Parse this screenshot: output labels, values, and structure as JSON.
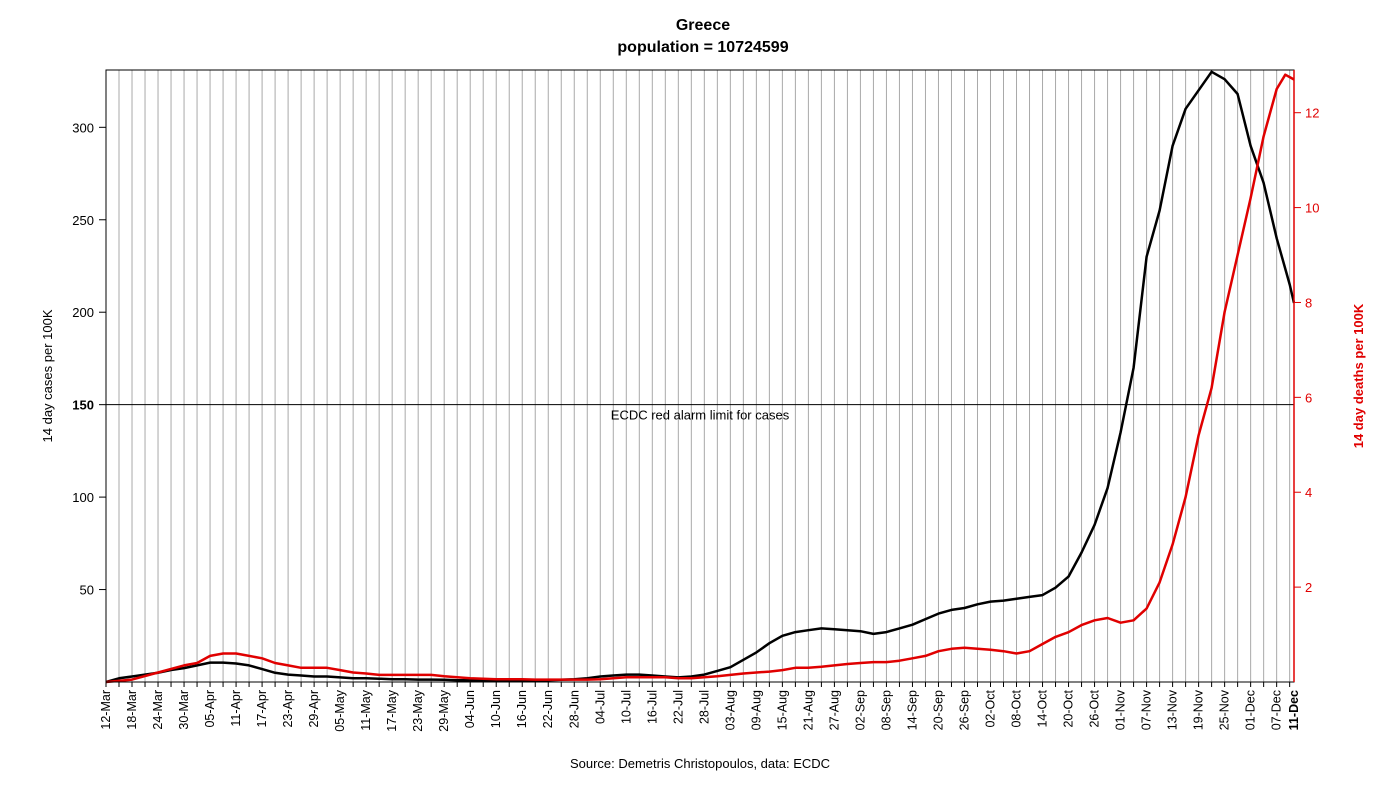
{
  "chart_data": {
    "type": "line",
    "title": "Greece",
    "subtitle": "population = 10724599",
    "ylabel": "14 day cases per 100K",
    "ylabel_right": "14 day deaths per 100K",
    "caption": "Source: Demetris Christopoulos, data: ECDC",
    "threshold": {
      "value": 150,
      "label": "ECDC red alarm limit for cases"
    },
    "ylim": [
      0,
      331
    ],
    "ylim_right": [
      0,
      12.9
    ],
    "yticks": [
      50,
      100,
      150,
      200,
      250,
      300
    ],
    "yticks_right": [
      2,
      4,
      6,
      8,
      10,
      12
    ],
    "x_range_days": [
      0,
      274
    ],
    "xtick_labels": [
      "12-Mar",
      "18-Mar",
      "24-Mar",
      "30-Mar",
      "05-Apr",
      "11-Apr",
      "17-Apr",
      "23-Apr",
      "29-Apr",
      "05-May",
      "11-May",
      "17-May",
      "23-May",
      "29-May",
      "04-Jun",
      "10-Jun",
      "16-Jun",
      "22-Jun",
      "28-Jun",
      "04-Jul",
      "10-Jul",
      "16-Jul",
      "22-Jul",
      "28-Jul",
      "03-Aug",
      "09-Aug",
      "15-Aug",
      "21-Aug",
      "27-Aug",
      "02-Sep",
      "08-Sep",
      "14-Sep",
      "20-Sep",
      "26-Sep",
      "02-Oct",
      "08-Oct",
      "14-Oct",
      "20-Oct",
      "26-Oct",
      "01-Nov",
      "07-Nov",
      "13-Nov",
      "19-Nov",
      "25-Nov",
      "01-Dec",
      "07-Dec"
    ],
    "last_tick_label": "11-Dec",
    "grid": "vertical",
    "series": [
      {
        "name": "14 day cases per 100K",
        "color": "#000000",
        "axis": "left",
        "points": [
          [
            0,
            0
          ],
          [
            3,
            2
          ],
          [
            6,
            3
          ],
          [
            9,
            4
          ],
          [
            12,
            5
          ],
          [
            15,
            6.5
          ],
          [
            18,
            7.5
          ],
          [
            21,
            9
          ],
          [
            24,
            10.5
          ],
          [
            27,
            10.5
          ],
          [
            30,
            10
          ],
          [
            33,
            9
          ],
          [
            36,
            7
          ],
          [
            39,
            5
          ],
          [
            42,
            4
          ],
          [
            45,
            3.5
          ],
          [
            48,
            3
          ],
          [
            51,
            3
          ],
          [
            54,
            2.5
          ],
          [
            57,
            2
          ],
          [
            60,
            2
          ],
          [
            63,
            1.8
          ],
          [
            66,
            1.5
          ],
          [
            69,
            1.5
          ],
          [
            72,
            1.3
          ],
          [
            75,
            1.3
          ],
          [
            78,
            1.2
          ],
          [
            81,
            1
          ],
          [
            84,
            1
          ],
          [
            87,
            1
          ],
          [
            90,
            1
          ],
          [
            93,
            1
          ],
          [
            96,
            1
          ],
          [
            99,
            1
          ],
          [
            102,
            1
          ],
          [
            105,
            1.2
          ],
          [
            108,
            1.5
          ],
          [
            111,
            2
          ],
          [
            114,
            3
          ],
          [
            117,
            3.5
          ],
          [
            120,
            4
          ],
          [
            123,
            4
          ],
          [
            126,
            3.5
          ],
          [
            129,
            3
          ],
          [
            132,
            2.5
          ],
          [
            135,
            3
          ],
          [
            138,
            4
          ],
          [
            141,
            6
          ],
          [
            144,
            8
          ],
          [
            147,
            12
          ],
          [
            150,
            16
          ],
          [
            153,
            21
          ],
          [
            156,
            25
          ],
          [
            159,
            27
          ],
          [
            162,
            28
          ],
          [
            165,
            29
          ],
          [
            168,
            28.5
          ],
          [
            171,
            28
          ],
          [
            174,
            27.5
          ],
          [
            177,
            26
          ],
          [
            180,
            27
          ],
          [
            183,
            29
          ],
          [
            186,
            31
          ],
          [
            189,
            34
          ],
          [
            192,
            37
          ],
          [
            195,
            39
          ],
          [
            198,
            40
          ],
          [
            201,
            42
          ],
          [
            204,
            43.5
          ],
          [
            207,
            44
          ],
          [
            210,
            45
          ],
          [
            213,
            46
          ],
          [
            216,
            47
          ],
          [
            219,
            51
          ],
          [
            222,
            57
          ],
          [
            225,
            70
          ],
          [
            228,
            85
          ],
          [
            231,
            105
          ],
          [
            234,
            135
          ],
          [
            237,
            170
          ],
          [
            240,
            230
          ],
          [
            243,
            255
          ],
          [
            246,
            290
          ],
          [
            249,
            310
          ],
          [
            252,
            320
          ],
          [
            255,
            330
          ],
          [
            258,
            326
          ],
          [
            261,
            318
          ],
          [
            264,
            290
          ],
          [
            267,
            270
          ],
          [
            270,
            240
          ],
          [
            273,
            215
          ],
          [
            274,
            205
          ]
        ]
      },
      {
        "name": "14 day deaths per 100K",
        "color": "#e00000",
        "axis": "right",
        "points": [
          [
            0,
            0
          ],
          [
            6,
            0.05
          ],
          [
            12,
            0.2
          ],
          [
            18,
            0.35
          ],
          [
            21,
            0.4
          ],
          [
            24,
            0.55
          ],
          [
            27,
            0.6
          ],
          [
            30,
            0.6
          ],
          [
            33,
            0.55
          ],
          [
            36,
            0.5
          ],
          [
            39,
            0.4
          ],
          [
            42,
            0.35
          ],
          [
            45,
            0.3
          ],
          [
            48,
            0.3
          ],
          [
            51,
            0.3
          ],
          [
            54,
            0.25
          ],
          [
            57,
            0.2
          ],
          [
            60,
            0.18
          ],
          [
            63,
            0.15
          ],
          [
            66,
            0.15
          ],
          [
            69,
            0.15
          ],
          [
            72,
            0.15
          ],
          [
            75,
            0.15
          ],
          [
            78,
            0.12
          ],
          [
            81,
            0.1
          ],
          [
            84,
            0.08
          ],
          [
            87,
            0.07
          ],
          [
            90,
            0.06
          ],
          [
            93,
            0.06
          ],
          [
            96,
            0.06
          ],
          [
            99,
            0.05
          ],
          [
            102,
            0.05
          ],
          [
            105,
            0.05
          ],
          [
            108,
            0.05
          ],
          [
            111,
            0.05
          ],
          [
            114,
            0.06
          ],
          [
            117,
            0.08
          ],
          [
            120,
            0.1
          ],
          [
            123,
            0.1
          ],
          [
            126,
            0.1
          ],
          [
            129,
            0.1
          ],
          [
            132,
            0.08
          ],
          [
            135,
            0.08
          ],
          [
            138,
            0.1
          ],
          [
            141,
            0.12
          ],
          [
            144,
            0.15
          ],
          [
            147,
            0.18
          ],
          [
            150,
            0.2
          ],
          [
            153,
            0.22
          ],
          [
            156,
            0.25
          ],
          [
            159,
            0.3
          ],
          [
            162,
            0.3
          ],
          [
            165,
            0.32
          ],
          [
            168,
            0.35
          ],
          [
            171,
            0.38
          ],
          [
            174,
            0.4
          ],
          [
            177,
            0.42
          ],
          [
            180,
            0.42
          ],
          [
            183,
            0.45
          ],
          [
            186,
            0.5
          ],
          [
            189,
            0.55
          ],
          [
            192,
            0.65
          ],
          [
            195,
            0.7
          ],
          [
            198,
            0.72
          ],
          [
            201,
            0.7
          ],
          [
            204,
            0.68
          ],
          [
            207,
            0.65
          ],
          [
            210,
            0.6
          ],
          [
            213,
            0.65
          ],
          [
            216,
            0.8
          ],
          [
            219,
            0.95
          ],
          [
            222,
            1.05
          ],
          [
            225,
            1.2
          ],
          [
            228,
            1.3
          ],
          [
            231,
            1.35
          ],
          [
            234,
            1.25
          ],
          [
            237,
            1.3
          ],
          [
            240,
            1.55
          ],
          [
            243,
            2.1
          ],
          [
            246,
            2.9
          ],
          [
            249,
            3.9
          ],
          [
            252,
            5.2
          ],
          [
            255,
            6.2
          ],
          [
            258,
            7.8
          ],
          [
            261,
            9.0
          ],
          [
            264,
            10.2
          ],
          [
            267,
            11.5
          ],
          [
            270,
            12.5
          ],
          [
            272,
            12.8
          ],
          [
            274,
            12.7
          ]
        ]
      }
    ]
  }
}
